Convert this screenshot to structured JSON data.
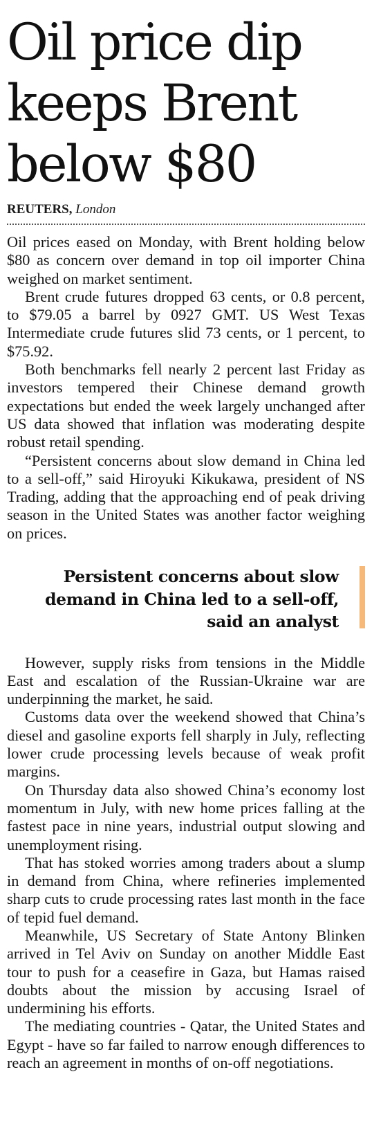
{
  "article": {
    "headline": "Oil price dip keeps Brent below $80",
    "byline": {
      "agency": "REUTERS,",
      "location": "London"
    },
    "paragraphs_top": [
      "Oil prices eased on Monday, with Brent holding below $80 as concern over demand in top oil importer China weighed on market sentiment.",
      "Brent crude futures dropped 63 cents, or 0.8 percent, to $79.05 a barrel by 0927 GMT. US West Texas Intermediate crude futures slid 73 cents, or 1 percent, to $75.92.",
      "Both benchmarks fell nearly 2 percent last Friday as investors tempered their Chinese demand growth expectations but ended the week largely unchanged after US data showed that inflation was moderating despite robust retail spending.",
      "“Persistent concerns about slow demand in China led to a sell-off,” said Hiroyuki Kikukawa, president of NS Trading, adding that the approaching end of peak driving season in the United States was another factor weighing on prices."
    ],
    "pull_quote": "Persistent concerns about slow demand in China led to a sell-off, said an analyst",
    "paragraphs_bottom": [
      "However, supply risks from tensions in the Middle East and escalation of the Russian-Ukraine war are underpinning the market, he said.",
      "Customs data over the weekend showed that China’s diesel and gasoline exports fell sharply in July, reflecting lower crude processing levels because of weak profit margins.",
      "On Thursday data also showed China’s economy lost momentum in July, with new home prices falling at the fastest pace in nine years, industrial output slowing and unemployment rising.",
      "That has stoked worries among traders about a slump in demand from China, where refineries implemented sharp cuts to crude processing rates last month in the face of tepid fuel demand.",
      "Meanwhile, US Secretary of State Antony Blinken arrived in Tel Aviv on Sunday on another Middle East tour to push for a ceasefire in Gaza, but Hamas raised doubts about the mission by accusing Israel of undermining his efforts.",
      "The mediating countries - Qatar, the United States and Egypt - have so far failed to narrow enough differences to reach an agreement in months of on-off negotiations."
    ]
  },
  "colors": {
    "pull_quote_accent": "#f7b97a",
    "text": "#141414"
  }
}
